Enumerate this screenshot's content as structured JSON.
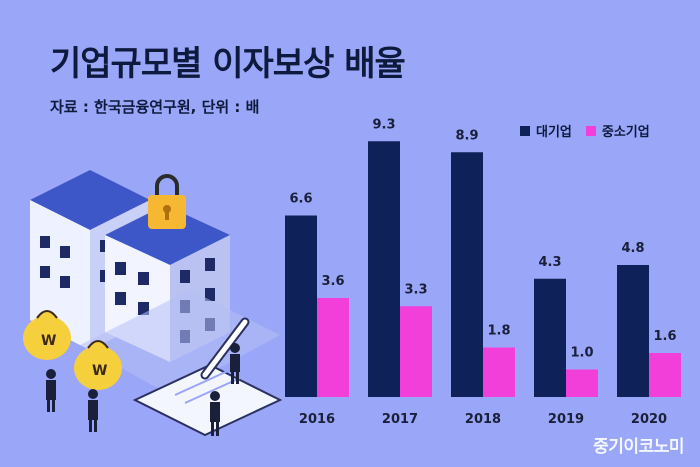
{
  "chart_data": {
    "type": "bar",
    "title": "기업규모별 이자보상 배율",
    "subtitle": "자료 : 한국금융연구원, 단위 : 배",
    "categories": [
      "2016",
      "2017",
      "2018",
      "2019",
      "2020"
    ],
    "series": [
      {
        "name": "대기업",
        "values": [
          6.6,
          9.3,
          8.9,
          4.3,
          4.8
        ],
        "color": "#0f2159"
      },
      {
        "name": "중소기업",
        "values": [
          3.6,
          3.3,
          1.8,
          1.0,
          1.6
        ],
        "color": "#f23fd9"
      }
    ],
    "ylim": [
      0,
      10
    ],
    "legend": "top-right",
    "grid": false
  },
  "watermark": "중기이코노미",
  "colors": {
    "background": "#9aa6f7",
    "text": "#0d1a3e"
  },
  "illustration": {
    "icons": [
      "apartment-building-icon",
      "padlock-icon",
      "money-bag-icon",
      "pen-icon",
      "clipboard-icon",
      "businessman-icon"
    ],
    "money_bag_mark": "W"
  }
}
